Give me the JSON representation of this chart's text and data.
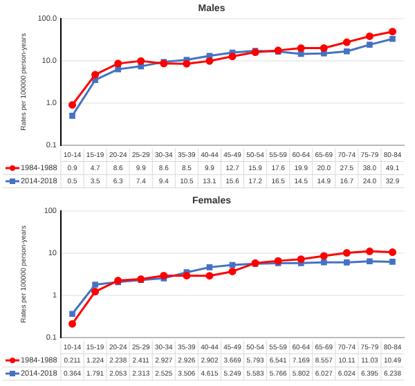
{
  "chart_data": [
    {
      "type": "line",
      "title": "Males",
      "ylabel": "Rates per 100000 person-years",
      "log": "y",
      "grid": "y",
      "legend": "bottom",
      "data_labels": true,
      "categories": [
        "10-14",
        "15-19",
        "20-24",
        "25-29",
        "30-34",
        "35-39",
        "40-44",
        "45-49",
        "50-54",
        "55-59",
        "60-64",
        "65-69",
        "70-74",
        "75-79",
        "80-84"
      ],
      "ylim": [
        0.1,
        100
      ],
      "yticks": [
        {
          "value": 0.1,
          "label": "0.1"
        },
        {
          "value": 1,
          "label": "1.0"
        },
        {
          "value": 10,
          "label": "10.0"
        },
        {
          "value": 100,
          "label": "100.0"
        }
      ],
      "series": [
        {
          "name": "1984-1988",
          "color": "#ff0000",
          "marker": "circle",
          "values": [
            0.9,
            4.7,
            8.6,
            9.9,
            8.6,
            8.5,
            9.9,
            12.7,
            15.9,
            17.6,
            19.9,
            20.0,
            27.5,
            38.0,
            49.1
          ],
          "value_labels": [
            "0.9",
            "4.7",
            "8.6",
            "9.9",
            "8.6",
            "8.5",
            "9.9",
            "12.7",
            "15.9",
            "17.6",
            "19.9",
            "20.0",
            "27.5",
            "38.0",
            "49.1"
          ]
        },
        {
          "name": "2014-2018",
          "color": "#4472c4",
          "marker": "square",
          "values": [
            0.5,
            3.5,
            6.3,
            7.4,
            9.4,
            10.5,
            13.1,
            15.6,
            17.2,
            16.5,
            14.5,
            14.9,
            16.7,
            24.0,
            32.9
          ],
          "value_labels": [
            "0.5",
            "3.5",
            "6.3",
            "7.4",
            "9.4",
            "10.5",
            "13.1",
            "15.6",
            "17.2",
            "16.5",
            "14.5",
            "14.9",
            "16.7",
            "24.0",
            "32.9"
          ]
        }
      ]
    },
    {
      "type": "line",
      "title": "Females",
      "ylabel": "Rates per 100000 person-years",
      "log": "y",
      "grid": "y",
      "legend": "bottom",
      "data_labels": true,
      "categories": [
        "10-14",
        "15-19",
        "20-24",
        "25-29",
        "30-34",
        "35-39",
        "40-44",
        "45-49",
        "50-54",
        "55-59",
        "60-64",
        "65-69",
        "70-74",
        "75-79",
        "80-84"
      ],
      "ylim": [
        0.1,
        100
      ],
      "yticks": [
        0.1,
        1,
        10,
        100
      ],
      "series": [
        {
          "name": "1984-1988",
          "color": "#ff0000",
          "marker": "circle",
          "values": [
            0.211,
            1.224,
            2.238,
            2.411,
            2.927,
            2.926,
            2.902,
            3.669,
            5.793,
            6.541,
            7.169,
            8.557,
            10.11,
            11.03,
            10.49
          ],
          "value_labels": [
            "0.211",
            "1.224",
            "2.238",
            "2.411",
            "2.927",
            "2.926",
            "2.902",
            "3.669",
            "5.793",
            "6.541",
            "7.169",
            "8.557",
            "10.11",
            "11.03",
            "10.49"
          ]
        },
        {
          "name": "2014-2018",
          "color": "#4472c4",
          "marker": "square",
          "values": [
            0.364,
            1.791,
            2.053,
            2.313,
            2.525,
            3.506,
            4.615,
            5.249,
            5.583,
            5.766,
            5.802,
            6.027,
            6.024,
            6.395,
            6.238
          ],
          "value_labels": [
            "0.364",
            "1.791",
            "2.053",
            "2.313",
            "2.525",
            "3.506",
            "4.615",
            "5.249",
            "5.583",
            "5.766",
            "5.802",
            "6.027",
            "6.024",
            "6.395",
            "6.238"
          ]
        }
      ]
    }
  ]
}
